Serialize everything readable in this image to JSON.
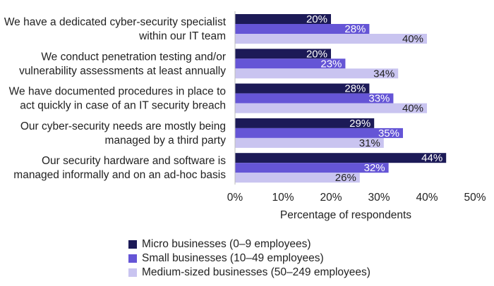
{
  "chart_data": {
    "type": "bar",
    "orientation": "horizontal",
    "categories": [
      [
        "We have a dedicated cyber-security specialist",
        "within our IT team"
      ],
      [
        "We conduct penetration testing and/or",
        "vulnerability assessments at least annually"
      ],
      [
        "We have documented procedures in place to",
        "act quickly in case of an IT security breach"
      ],
      [
        "Our cyber-security needs are mostly being",
        "managed by a third party"
      ],
      [
        "Our security hardware and software is",
        "managed informally and on an ad-hoc basis"
      ]
    ],
    "series": [
      {
        "name": "Micro businesses (0–9 employees)",
        "color": "#1c1a57",
        "label_color": "#ffffff",
        "values": [
          20,
          20,
          28,
          29,
          44
        ]
      },
      {
        "name": "Small businesses (10–49 employees)",
        "color": "#6555d6",
        "label_color": "#ffffff",
        "values": [
          28,
          23,
          33,
          35,
          32
        ]
      },
      {
        "name": "Medium-sized businesses (50–249 employees)",
        "color": "#c9c4f0",
        "label_color": "#222222",
        "values": [
          40,
          34,
          40,
          31,
          26
        ]
      }
    ],
    "value_suffix": "%",
    "xlim": [
      0,
      50
    ],
    "xticks": [
      "0%",
      "10%",
      "20%",
      "30%",
      "40%",
      "50%"
    ],
    "xlabel": "Percentage of respondents",
    "legend_position": "bottom",
    "grid": false
  }
}
